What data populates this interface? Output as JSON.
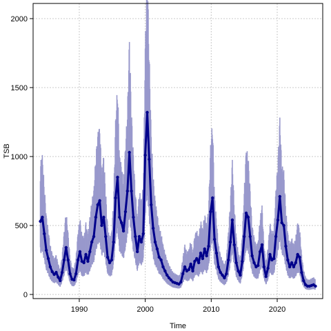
{
  "chart_data": {
    "type": "line",
    "title": "",
    "xlabel": "Time",
    "ylabel": "TSB",
    "xlim": [
      1983.0,
      2026.9
    ],
    "ylim": [
      -30,
      2110
    ],
    "xticks": [
      1990,
      2000,
      2010,
      2020
    ],
    "yticks": [
      0,
      500,
      1000,
      1500,
      2000
    ],
    "grid": true,
    "colors": {
      "line": "#00008b",
      "band": "#9999cc",
      "grid": "#c8c8c8"
    },
    "series": [
      {
        "values": [
          [
            1984.1,
            530
          ],
          [
            1984.4,
            560
          ],
          [
            1984.7,
            440
          ],
          [
            1985.0,
            320
          ],
          [
            1985.3,
            260
          ],
          [
            1985.6,
            200
          ],
          [
            1985.9,
            165
          ],
          [
            1986.2,
            145
          ],
          [
            1986.5,
            160
          ],
          [
            1986.8,
            125
          ],
          [
            1987.1,
            100
          ],
          [
            1987.4,
            160
          ],
          [
            1987.7,
            250
          ],
          [
            1988.0,
            340
          ],
          [
            1988.3,
            250
          ],
          [
            1988.6,
            150
          ],
          [
            1988.9,
            110
          ],
          [
            1989.2,
            105
          ],
          [
            1989.5,
            150
          ],
          [
            1989.8,
            250
          ],
          [
            1990.1,
            310
          ],
          [
            1990.4,
            240
          ],
          [
            1990.7,
            230
          ],
          [
            1991.0,
            290
          ],
          [
            1991.3,
            240
          ],
          [
            1991.6,
            310
          ],
          [
            1991.9,
            380
          ],
          [
            1992.2,
            420
          ],
          [
            1992.5,
            560
          ],
          [
            1992.8,
            650
          ],
          [
            1993.1,
            680
          ],
          [
            1993.4,
            500
          ],
          [
            1993.7,
            560
          ],
          [
            1994.0,
            420
          ],
          [
            1994.3,
            270
          ],
          [
            1994.6,
            230
          ],
          [
            1994.9,
            250
          ],
          [
            1995.2,
            380
          ],
          [
            1995.5,
            700
          ],
          [
            1995.8,
            850
          ],
          [
            1996.1,
            560
          ],
          [
            1996.4,
            520
          ],
          [
            1996.7,
            460
          ],
          [
            1997.0,
            600
          ],
          [
            1997.3,
            750
          ],
          [
            1997.6,
            1030
          ],
          [
            1997.9,
            750
          ],
          [
            1998.2,
            560
          ],
          [
            1998.5,
            420
          ],
          [
            1998.8,
            310
          ],
          [
            1999.1,
            420
          ],
          [
            1999.4,
            380
          ],
          [
            1999.7,
            440
          ],
          [
            2000.0,
            1010
          ],
          [
            2000.3,
            1320
          ],
          [
            2000.6,
            980
          ],
          [
            2000.9,
            650
          ],
          [
            2001.2,
            480
          ],
          [
            2001.5,
            380
          ],
          [
            2001.8,
            330
          ],
          [
            2002.1,
            270
          ],
          [
            2002.4,
            250
          ],
          [
            2002.7,
            200
          ],
          [
            2003.0,
            170
          ],
          [
            2003.3,
            140
          ],
          [
            2003.6,
            120
          ],
          [
            2003.9,
            105
          ],
          [
            2004.2,
            90
          ],
          [
            2004.5,
            85
          ],
          [
            2004.8,
            80
          ],
          [
            2005.1,
            75
          ],
          [
            2005.4,
            90
          ],
          [
            2005.7,
            150
          ],
          [
            2006.0,
            200
          ],
          [
            2006.3,
            170
          ],
          [
            2006.6,
            180
          ],
          [
            2006.9,
            220
          ],
          [
            2007.2,
            170
          ],
          [
            2007.5,
            240
          ],
          [
            2007.8,
            260
          ],
          [
            2008.1,
            230
          ],
          [
            2008.4,
            300
          ],
          [
            2008.7,
            260
          ],
          [
            2009.0,
            330
          ],
          [
            2009.3,
            280
          ],
          [
            2009.6,
            350
          ],
          [
            2009.9,
            600
          ],
          [
            2010.2,
            700
          ],
          [
            2010.5,
            400
          ],
          [
            2010.8,
            300
          ],
          [
            2011.1,
            200
          ],
          [
            2011.4,
            160
          ],
          [
            2011.7,
            140
          ],
          [
            2012.0,
            120
          ],
          [
            2012.3,
            150
          ],
          [
            2012.6,
            250
          ],
          [
            2012.9,
            380
          ],
          [
            2013.2,
            540
          ],
          [
            2013.5,
            360
          ],
          [
            2013.8,
            230
          ],
          [
            2014.1,
            170
          ],
          [
            2014.4,
            140
          ],
          [
            2014.7,
            240
          ],
          [
            2015.0,
            420
          ],
          [
            2015.3,
            590
          ],
          [
            2015.6,
            560
          ],
          [
            2015.9,
            420
          ],
          [
            2016.2,
            280
          ],
          [
            2016.5,
            230
          ],
          [
            2016.8,
            200
          ],
          [
            2017.1,
            210
          ],
          [
            2017.4,
            310
          ],
          [
            2017.7,
            360
          ],
          [
            2018.0,
            200
          ],
          [
            2018.3,
            130
          ],
          [
            2018.6,
            190
          ],
          [
            2018.9,
            290
          ],
          [
            2019.2,
            250
          ],
          [
            2019.5,
            260
          ],
          [
            2019.8,
            420
          ],
          [
            2020.1,
            540
          ],
          [
            2020.4,
            710
          ],
          [
            2020.7,
            520
          ],
          [
            2021.0,
            500
          ],
          [
            2021.3,
            350
          ],
          [
            2021.6,
            250
          ],
          [
            2021.9,
            200
          ],
          [
            2022.2,
            230
          ],
          [
            2022.5,
            200
          ],
          [
            2022.8,
            230
          ],
          [
            2023.1,
            290
          ],
          [
            2023.4,
            270
          ],
          [
            2023.7,
            160
          ],
          [
            2024.0,
            100
          ],
          [
            2024.3,
            70
          ],
          [
            2024.6,
            60
          ],
          [
            2024.9,
            60
          ],
          [
            2025.2,
            65
          ],
          [
            2025.5,
            70
          ],
          [
            2025.8,
            60
          ]
        ]
      }
    ]
  }
}
